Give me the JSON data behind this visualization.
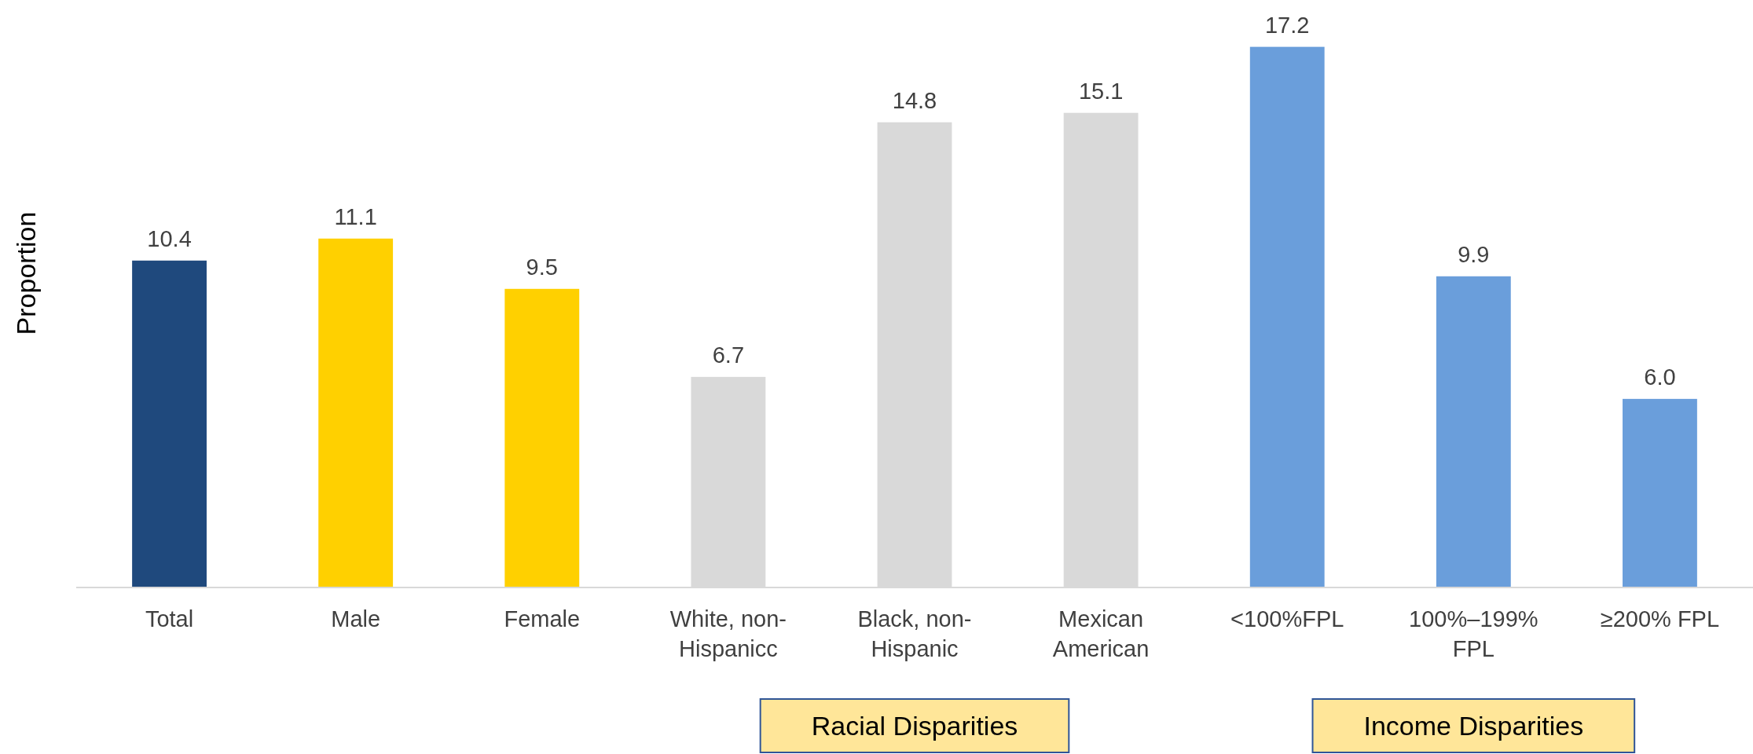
{
  "chart_data": {
    "type": "bar",
    "ylabel": "Proportion",
    "categories": [
      "Total",
      "Male",
      "Female",
      "White, non-Hispanicc",
      "Black, non-Hispanic",
      "Mexican American",
      "<100%FPL",
      "100%–199% FPL",
      "≥200% FPL"
    ],
    "values": [
      10.4,
      11.1,
      9.5,
      6.7,
      14.8,
      15.1,
      17.2,
      9.9,
      6.0
    ],
    "value_labels": [
      "10.4",
      "11.1",
      "9.5",
      "6.7",
      "14.8",
      "15.1",
      "17.2",
      "9.9",
      "6.0"
    ],
    "colors": [
      "#1f497d",
      "#ffd000",
      "#ffd000",
      "#d9d9d9",
      "#d9d9d9",
      "#d9d9d9",
      "#6a9edb",
      "#6a9edb",
      "#6a9edb"
    ],
    "tick_labels": "x",
    "annotations": [
      "Racial Disparities",
      "Income Disparities"
    ]
  }
}
